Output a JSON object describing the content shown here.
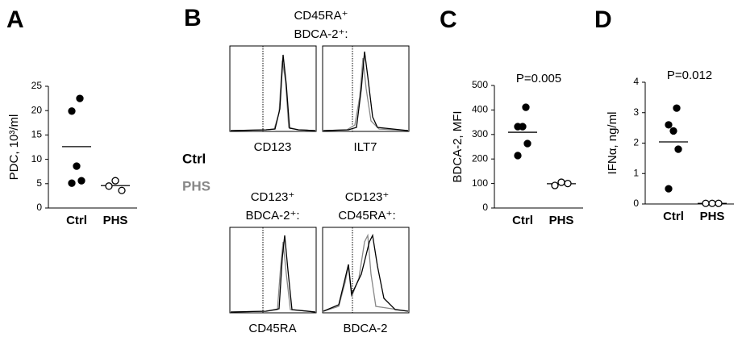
{
  "chart_data": [
    {
      "type": "dot",
      "panel": "A",
      "ylabel": "PDC, 10³/ml",
      "categories": [
        "Ctrl",
        "PHS"
      ],
      "values": [
        [
          22.5,
          19.9,
          8.6,
          5.6,
          5.1
        ],
        [
          5.6,
          4.5,
          3.6
        ]
      ],
      "means": [
        12.6,
        4.6
      ],
      "marker_fill": [
        "#000000",
        "#ffffff"
      ],
      "ylim": [
        0,
        25
      ],
      "yticks": [
        0,
        5,
        10,
        15,
        20,
        25
      ]
    },
    {
      "type": "dot",
      "panel": "C",
      "ylabel": "BDCA-2, MFI",
      "annotation": "P=0.005",
      "categories": [
        "Ctrl",
        "PHS"
      ],
      "values": [
        [
          411,
          332,
          332,
          263,
          214
        ],
        [
          105,
          92,
          100
        ]
      ],
      "means": [
        309,
        99
      ],
      "marker_fill": [
        "#000000",
        "#ffffff"
      ],
      "ylim": [
        0,
        500
      ],
      "yticks": [
        0,
        100,
        200,
        300,
        400,
        500
      ]
    },
    {
      "type": "dot",
      "panel": "D",
      "ylabel": "IFNα, ng/ml",
      "annotation": "P=0.012",
      "categories": [
        "Ctrl",
        "PHS"
      ],
      "values": [
        [
          3.15,
          2.6,
          2.4,
          1.8,
          0.5
        ],
        [
          0.02,
          0.02,
          0.02
        ]
      ],
      "means": [
        2.04,
        0.02
      ],
      "marker_fill": [
        "#000000",
        "#ffffff"
      ],
      "ylim": [
        0,
        4
      ],
      "yticks": [
        0,
        1,
        2,
        3,
        4
      ]
    }
  ],
  "panel_b": {
    "panel": "B",
    "legend": [
      {
        "name": "Ctrl",
        "color": "#000000"
      },
      {
        "name": "PHS",
        "color": "#888888"
      }
    ],
    "top_title": [
      "CD45RA⁺",
      "BDCA-2⁺:"
    ],
    "bottom_titles": [
      [
        "CD123⁺",
        "BDCA-2⁺:"
      ],
      [
        "CD123⁺",
        "CD45RA⁺:"
      ]
    ],
    "plot_labels": [
      "CD123",
      "ILT7",
      "CD45RA",
      "BDCA-2"
    ]
  }
}
